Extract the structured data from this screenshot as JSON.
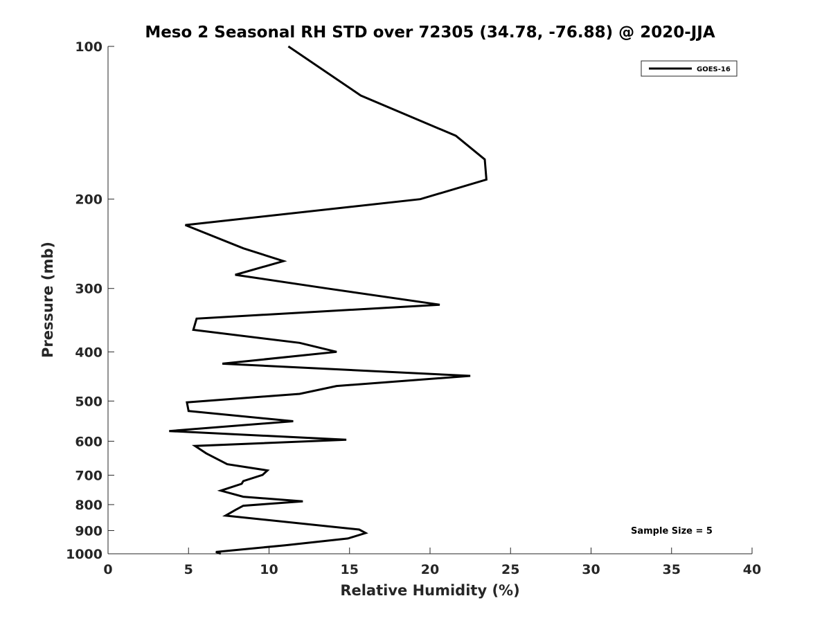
{
  "chart_data": {
    "type": "line",
    "title": "Meso 2 Seasonal RH STD over 72305 (34.78, -76.88) @ 2020-JJA",
    "xlabel": "Relative Humidity (%)",
    "ylabel": "Pressure (mb)",
    "xlim": [
      0,
      40
    ],
    "ylim": [
      100,
      1000
    ],
    "yscale": "log",
    "y_reversed": true,
    "grid": false,
    "x_ticks": [
      0,
      5,
      10,
      15,
      20,
      25,
      30,
      35,
      40
    ],
    "x_tick_labels": [
      "0",
      "5",
      "10",
      "15",
      "20",
      "25",
      "30",
      "35",
      "40"
    ],
    "y_ticks": [
      100,
      200,
      300,
      400,
      500,
      600,
      700,
      800,
      900,
      1000
    ],
    "y_tick_labels": [
      "100",
      "200",
      "300",
      "400",
      "500",
      "600",
      "700",
      "800",
      "900",
      "1000"
    ],
    "legend": {
      "position": "top-right",
      "entries": [
        "GOES-16"
      ]
    },
    "annotation": "Sample Size = 5",
    "series": [
      {
        "name": "GOES-16",
        "color": "#000000",
        "rh": [
          11.2,
          15.7,
          21.6,
          23.4,
          23.5,
          19.4,
          4.8,
          8.4,
          10.9,
          7.9,
          13.6,
          20.6,
          5.5,
          5.3,
          11.9,
          14.2,
          7.1,
          22.5,
          14.2,
          11.9,
          4.9,
          5.0,
          11.5,
          3.8,
          14.8,
          5.4,
          6.1,
          7.4,
          9.9,
          9.6,
          8.4,
          8.3,
          7.0,
          8.4,
          12.1,
          8.4,
          7.9,
          7.3,
          15.6,
          16.0,
          14.9,
          11.0,
          6.7,
          7.0
        ],
        "pressure": [
          100,
          125,
          150,
          167,
          183,
          200,
          225,
          250,
          265,
          282,
          300,
          323,
          344,
          362,
          384,
          400,
          422,
          446,
          467,
          484,
          503,
          523,
          548,
          573,
          596,
          613,
          634,
          666,
          685,
          699,
          719,
          728,
          751,
          772,
          788,
          804,
          820,
          841,
          896,
          910,
          933,
          962,
          992,
          1000
        ]
      }
    ]
  }
}
